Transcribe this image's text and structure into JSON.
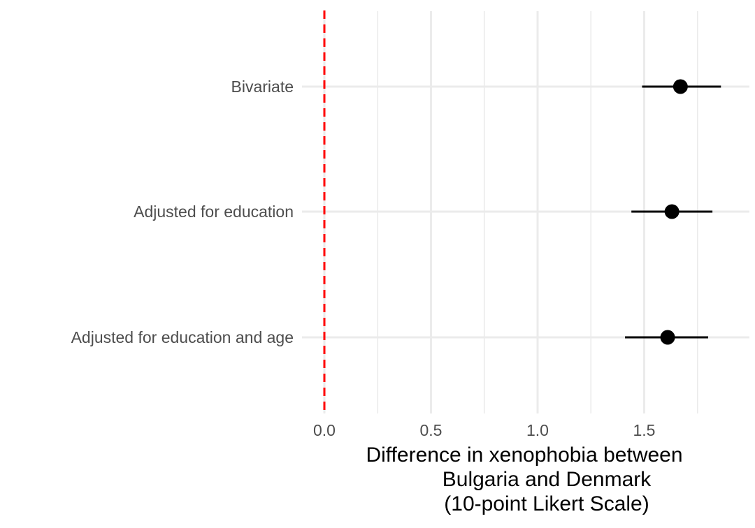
{
  "chart_data": {
    "type": "scatter",
    "subtype": "coefficient-plot-with-confidence-intervals",
    "title": "",
    "xlabel_lines": [
      "Difference in xenophobia between",
      "Bulgaria and Denmark",
      "(10-point Likert Scale)"
    ],
    "ylabel": "",
    "x_ticks": [
      0.0,
      0.5,
      1.0,
      1.5
    ],
    "x_tick_labels": [
      "0.0",
      "0.5",
      "1.0",
      "1.5"
    ],
    "x_minor_ticks": [
      0.25,
      0.75,
      1.25,
      1.75
    ],
    "xlim": [
      -0.07,
      1.96
    ],
    "reference_line": {
      "x": 0.0,
      "style": "dashed",
      "color": "#ff0000"
    },
    "categories": [
      "Bivariate",
      "Adjusted for education",
      "Adjusted for education and age"
    ],
    "estimates": [
      1.67,
      1.63,
      1.61
    ],
    "ci_low": [
      1.49,
      1.44,
      1.41
    ],
    "ci_high": [
      1.86,
      1.82,
      1.8
    ],
    "grid": true,
    "legend": "none",
    "point_color": "#000000",
    "grid_color": "#ebebeb"
  }
}
